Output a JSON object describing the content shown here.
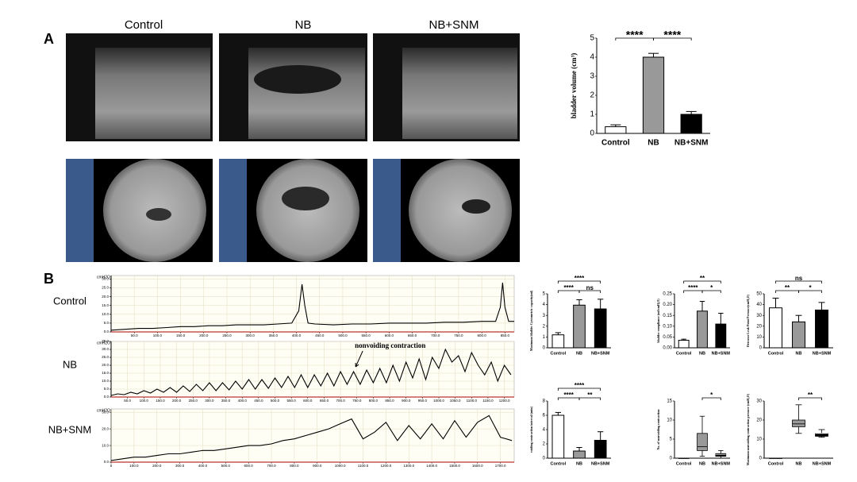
{
  "panels": {
    "a": "A",
    "b": "B"
  },
  "columns": [
    "Control",
    "NB",
    "NB+SNM"
  ],
  "rows": [
    "Control",
    "NB",
    "NB+SNM"
  ],
  "chart_data": [
    {
      "type": "bar",
      "y_label": "bladder volume (cm³)",
      "categories": [
        "Control",
        "NB",
        "NB+SNM"
      ],
      "values": [
        0.35,
        4.0,
        1.0
      ],
      "errors": [
        0.1,
        0.2,
        0.15
      ],
      "colors": [
        "#ffffff",
        "#999999",
        "#000000"
      ],
      "ylim": [
        0,
        5
      ],
      "yticks": [
        0,
        1,
        2,
        3,
        4,
        5
      ],
      "comparisons": [
        {
          "groups": [
            "Control",
            "NB"
          ],
          "label": "****"
        },
        {
          "groups": [
            "NB",
            "NB+SNM"
          ],
          "label": "****"
        }
      ]
    },
    {
      "type": "line",
      "y_label": "cmH2O",
      "color": "#000000",
      "grid": true,
      "x": [
        0,
        30,
        60,
        90,
        120,
        150,
        180,
        210,
        240,
        270,
        300,
        330,
        360,
        390,
        405,
        412,
        418,
        425,
        440,
        480,
        520,
        560,
        600,
        640,
        680,
        720,
        760,
        800,
        830,
        840,
        845,
        850,
        858,
        870
      ],
      "values": [
        1,
        1.5,
        2,
        2,
        2.5,
        3,
        3,
        3.5,
        3.5,
        4,
        4,
        4,
        4.5,
        5,
        12,
        27,
        15,
        5,
        4.5,
        4,
        4.5,
        4.5,
        5,
        5,
        5,
        5.5,
        5.5,
        6,
        6,
        14,
        28,
        14,
        6,
        6
      ],
      "xlim": [
        0,
        870
      ],
      "ylim": [
        0,
        32
      ],
      "yticks": [
        {
          "value": 0,
          "label": "0.0"
        },
        {
          "value": 5,
          "label": "5.0"
        },
        {
          "value": 10,
          "label": "10.0"
        },
        {
          "value": 15,
          "label": "15.0"
        },
        {
          "value": 20,
          "label": "20.0"
        },
        {
          "value": 25,
          "label": "25.0"
        },
        {
          "value": 30,
          "label": "30.0"
        }
      ],
      "xticks": [
        {
          "value": 50,
          "label": "50.0"
        },
        {
          "value": 100,
          "label": "100.0"
        },
        {
          "value": 150,
          "label": "150.0"
        },
        {
          "value": 200,
          "label": "200.0"
        },
        {
          "value": 250,
          "label": "250.0"
        },
        {
          "value": 300,
          "label": "300.0"
        },
        {
          "value": 350,
          "label": "350.0"
        },
        {
          "value": 400,
          "label": "400.0"
        },
        {
          "value": 450,
          "label": "450.0"
        },
        {
          "value": 500,
          "label": "500.0"
        },
        {
          "value": 550,
          "label": "550.0"
        },
        {
          "value": 600,
          "label": "600.0"
        },
        {
          "value": 650,
          "label": "650.0"
        },
        {
          "value": 700,
          "label": "700.0"
        },
        {
          "value": 750,
          "label": "750.0"
        },
        {
          "value": 800,
          "label": "800.0"
        },
        {
          "value": 850,
          "label": "850.0"
        }
      ]
    },
    {
      "type": "line",
      "y_label": "cmH2O",
      "color": "#000000",
      "grid": true,
      "annotation": "nonvoiding contraction",
      "annotation_x": 780,
      "x": [
        0,
        20,
        40,
        60,
        80,
        100,
        120,
        140,
        160,
        180,
        200,
        220,
        240,
        260,
        280,
        300,
        320,
        340,
        360,
        380,
        400,
        420,
        440,
        460,
        480,
        500,
        520,
        540,
        560,
        580,
        600,
        620,
        640,
        660,
        680,
        700,
        720,
        740,
        760,
        780,
        800,
        820,
        840,
        860,
        880,
        900,
        920,
        940,
        960,
        980,
        1000,
        1020,
        1040,
        1060,
        1080,
        1100,
        1120,
        1140,
        1160,
        1180,
        1200,
        1220
      ],
      "values": [
        1,
        2,
        1.5,
        3,
        2,
        4,
        2.5,
        5,
        3,
        6,
        3,
        7,
        3.5,
        8,
        4,
        9,
        4,
        9,
        4.5,
        10,
        5,
        11,
        5,
        11,
        5.5,
        12,
        6,
        13,
        6,
        14,
        6,
        14,
        7,
        15,
        7,
        16,
        8,
        16,
        8,
        17,
        9,
        18,
        9,
        20,
        10,
        22,
        12,
        24,
        11,
        25,
        18,
        30,
        22,
        26,
        16,
        28,
        20,
        14,
        22,
        10,
        20,
        14
      ],
      "xlim": [
        0,
        1230
      ],
      "ylim": [
        0,
        35
      ],
      "yticks": [
        {
          "value": 0,
          "label": "0.0"
        },
        {
          "value": 5,
          "label": "5.0"
        },
        {
          "value": 10,
          "label": "10.0"
        },
        {
          "value": 15,
          "label": "15.0"
        },
        {
          "value": 20,
          "label": "20.0"
        },
        {
          "value": 25,
          "label": "25.0"
        },
        {
          "value": 30,
          "label": "30.0"
        },
        {
          "value": 35,
          "label": "35.0"
        }
      ],
      "xticks": [
        {
          "value": 50,
          "label": "50.0"
        },
        {
          "value": 100,
          "label": "100.0"
        },
        {
          "value": 150,
          "label": "150.0"
        },
        {
          "value": 200,
          "label": "200.0"
        },
        {
          "value": 250,
          "label": "250.0"
        },
        {
          "value": 300,
          "label": "300.0"
        },
        {
          "value": 350,
          "label": "350.0"
        },
        {
          "value": 400,
          "label": "400.0"
        },
        {
          "value": 450,
          "label": "450.0"
        },
        {
          "value": 500,
          "label": "500.0"
        },
        {
          "value": 550,
          "label": "550.0"
        },
        {
          "value": 600,
          "label": "600.0"
        },
        {
          "value": 650,
          "label": "650.0"
        },
        {
          "value": 700,
          "label": "700.0"
        },
        {
          "value": 750,
          "label": "750.0"
        },
        {
          "value": 800,
          "label": "800.0"
        },
        {
          "value": 850,
          "label": "850.0"
        },
        {
          "value": 900,
          "label": "900.0"
        },
        {
          "value": 950,
          "label": "950.0"
        },
        {
          "value": 1000,
          "label": "1000.0"
        },
        {
          "value": 1050,
          "label": "1050.0"
        },
        {
          "value": 1100,
          "label": "1100.0"
        },
        {
          "value": 1150,
          "label": "1150.0"
        },
        {
          "value": 1200,
          "label": "1200.0"
        }
      ]
    },
    {
      "type": "line",
      "y_label": "cmH2O",
      "color": "#000000",
      "grid": true,
      "x": [
        0,
        50,
        100,
        150,
        200,
        250,
        300,
        350,
        400,
        450,
        500,
        550,
        600,
        650,
        700,
        750,
        800,
        850,
        900,
        950,
        1000,
        1050,
        1100,
        1150,
        1200,
        1250,
        1300,
        1350,
        1400,
        1450,
        1500,
        1550,
        1600,
        1650,
        1700,
        1750
      ],
      "values": [
        1,
        2,
        3,
        3,
        4,
        5,
        5,
        6,
        7,
        7,
        8,
        9,
        10,
        10,
        11,
        13,
        14,
        16,
        18,
        20,
        23,
        26,
        14,
        18,
        24,
        13,
        22,
        14,
        23,
        14,
        25,
        15,
        24,
        28,
        15,
        13
      ],
      "xlim": [
        0,
        1760
      ],
      "ylim": [
        0,
        32
      ],
      "yticks": [
        {
          "value": 0,
          "label": "0.0"
        },
        {
          "value": 10,
          "label": "10.0"
        },
        {
          "value": 20,
          "label": "20.0"
        },
        {
          "value": 30,
          "label": "30.0"
        }
      ],
      "xticks": [
        0,
        {
          "value": 100,
          "label": "100.0"
        },
        {
          "value": 200,
          "label": "200.0"
        },
        {
          "value": 300,
          "label": "300.0"
        },
        {
          "value": 400,
          "label": "400.0"
        },
        {
          "value": 500,
          "label": "500.0"
        },
        {
          "value": 600,
          "label": "600.0"
        },
        {
          "value": 700,
          "label": "700.0"
        },
        {
          "value": 800,
          "label": "800.0"
        },
        {
          "value": 900,
          "label": "900.0"
        },
        {
          "value": 1000,
          "label": "1000.0"
        },
        {
          "value": 1100,
          "label": "1100.0"
        },
        {
          "value": 1200,
          "label": "1200.0"
        },
        {
          "value": 1300,
          "label": "1300.0"
        },
        {
          "value": 1400,
          "label": "1400.0"
        },
        {
          "value": 1500,
          "label": "1500.0"
        },
        {
          "value": 1600,
          "label": "1600.0"
        },
        {
          "value": 1700,
          "label": "1700.0"
        }
      ]
    },
    {
      "type": "bar",
      "y_label": "Maximum bladder Cystometric capacity(ml)",
      "categories": [
        "Control",
        "NB",
        "NB+SNM"
      ],
      "values": [
        1.2,
        3.95,
        3.6
      ],
      "errors": [
        0.2,
        0.5,
        0.9
      ],
      "colors": [
        "#ffffff",
        "#999999",
        "#000000"
      ],
      "ylim": [
        0,
        5
      ],
      "yticks": [
        0,
        1,
        2,
        3,
        4,
        5
      ],
      "comparisons": [
        {
          "groups": [
            "Control",
            "NB+SNM"
          ],
          "label": "****"
        },
        {
          "groups": [
            "Control",
            "NB"
          ],
          "label": "****"
        },
        {
          "groups": [
            "NB",
            "NB+SNM"
          ],
          "label": "ns"
        }
      ]
    },
    {
      "type": "bar",
      "y_label": "bladder compliance (ml/cmH₂O)",
      "categories": [
        "Control",
        "NB",
        "NB+SNM"
      ],
      "values": [
        0.035,
        0.17,
        0.11
      ],
      "errors": [
        0.005,
        0.045,
        0.05
      ],
      "colors": [
        "#ffffff",
        "#999999",
        "#000000"
      ],
      "ylim": [
        0,
        0.25
      ],
      "yticks": [
        {
          "value": 0,
          "label": "0.00"
        },
        {
          "value": 0.05,
          "label": "0.05"
        },
        {
          "value": 0.1,
          "label": "0.10"
        },
        {
          "value": 0.15,
          "label": "0.15"
        },
        {
          "value": 0.2,
          "label": "0.20"
        },
        {
          "value": 0.25,
          "label": "0.25"
        }
      ],
      "comparisons": [
        {
          "groups": [
            "Control",
            "NB+SNM"
          ],
          "label": "**"
        },
        {
          "groups": [
            "Control",
            "NB"
          ],
          "label": "****"
        },
        {
          "groups": [
            "NB",
            "NB+SNM"
          ],
          "label": "*"
        }
      ]
    },
    {
      "type": "bar",
      "y_label": "Detrusor Leak Point Pressure(cmH₂O)",
      "categories": [
        "Control",
        "NB",
        "NB+SNM"
      ],
      "values": [
        37,
        24,
        35
      ],
      "errors": [
        9,
        6,
        7
      ],
      "colors": [
        "#ffffff",
        "#999999",
        "#000000"
      ],
      "ylim": [
        0,
        50
      ],
      "yticks": [
        0,
        10,
        20,
        30,
        40,
        50
      ],
      "comparisons": [
        {
          "groups": [
            "Control",
            "NB+SNM"
          ],
          "label": "ns"
        },
        {
          "groups": [
            "Control",
            "NB"
          ],
          "label": "**"
        },
        {
          "groups": [
            "NB",
            "NB+SNM"
          ],
          "label": "*"
        }
      ]
    },
    {
      "type": "bar",
      "y_label": "voiding contraction interval (min)",
      "categories": [
        "Control",
        "NB",
        "NB+SNM"
      ],
      "values": [
        6,
        1,
        2.5
      ],
      "errors": [
        0.4,
        0.5,
        1.2
      ],
      "colors": [
        "#ffffff",
        "#999999",
        "#000000"
      ],
      "ylim": [
        0,
        8
      ],
      "yticks": [
        0,
        2,
        4,
        6,
        8
      ],
      "comparisons": [
        {
          "groups": [
            "Control",
            "NB+SNM"
          ],
          "label": "****"
        },
        {
          "groups": [
            "Control",
            "NB"
          ],
          "label": "****"
        },
        {
          "groups": [
            "NB",
            "NB+SNM"
          ],
          "label": "**"
        }
      ]
    },
    {
      "type": "box",
      "y_label": "No. of nonvoiding contraction",
      "categories": [
        "Control",
        "NB",
        "NB+SNM"
      ],
      "boxes": [
        {
          "min": 0,
          "q1": 0,
          "median": 0,
          "q3": 0,
          "max": 0
        },
        {
          "min": 0.5,
          "q1": 2,
          "median": 3,
          "q3": 6.5,
          "max": 11
        },
        {
          "min": 0,
          "q1": 0.5,
          "median": 1,
          "q3": 1.2,
          "max": 2
        }
      ],
      "colors": [
        "#ffffff",
        "#999999",
        "#000000"
      ],
      "ylim": [
        0,
        15
      ],
      "yticks": [
        0,
        5,
        10,
        15
      ],
      "comparisons": [
        {
          "groups": [
            "NB",
            "NB+SNM"
          ],
          "label": "*"
        }
      ]
    },
    {
      "type": "box",
      "y_label": "Maximum nonvoiding contraction pressure (cmH₂O)",
      "categories": [
        "Control",
        "NB",
        "NB+SNM"
      ],
      "boxes": [
        {
          "min": 0,
          "q1": 0,
          "median": 0,
          "q3": 0,
          "max": 0
        },
        {
          "min": 13,
          "q1": 16.5,
          "median": 18,
          "q3": 20,
          "max": 28
        },
        {
          "min": 11,
          "q1": 11.5,
          "median": 13,
          "q3": 13,
          "max": 15
        }
      ],
      "colors": [
        "#ffffff",
        "#999999",
        "#000000"
      ],
      "ylim": [
        0,
        30
      ],
      "yticks": [
        0,
        10,
        20,
        30
      ],
      "comparisons": [
        {
          "groups": [
            "NB",
            "NB+SNM"
          ],
          "label": "**"
        }
      ]
    }
  ]
}
